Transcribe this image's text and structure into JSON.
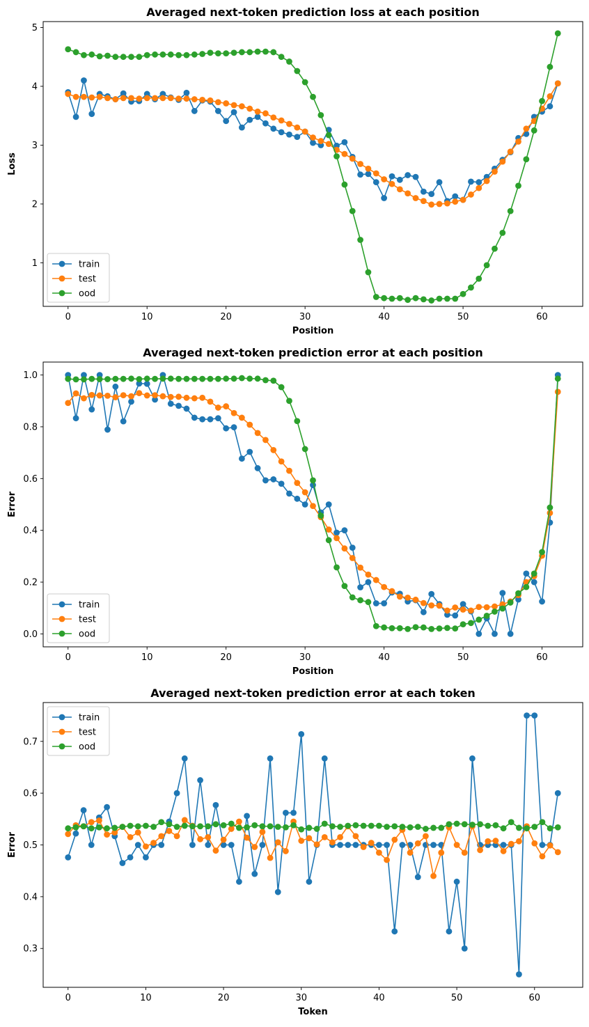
{
  "colors": {
    "train": "#1f77b4",
    "test": "#ff7f0e",
    "ood": "#2ca02c"
  },
  "chart_data": [
    {
      "type": "line",
      "title": "Averaged next-token prediction loss at each position",
      "xlabel": "Position",
      "ylabel": "Loss",
      "xlim": [
        -3.15,
        65.15
      ],
      "ylim": [
        0.26,
        5.1
      ],
      "xticks": [
        0,
        10,
        20,
        30,
        40,
        50,
        60
      ],
      "yticks": [
        1,
        2,
        3,
        4,
        5
      ],
      "legend": "lower-left",
      "grid": false,
      "x_start": 0,
      "series": [
        {
          "name": "train",
          "color": "#1f77b4",
          "values": [
            3.9,
            3.48,
            4.1,
            3.53,
            3.87,
            3.83,
            3.78,
            3.88,
            3.74,
            3.75,
            3.87,
            3.78,
            3.87,
            3.81,
            3.77,
            3.89,
            3.58,
            3.76,
            3.74,
            3.58,
            3.41,
            3.56,
            3.3,
            3.43,
            3.48,
            3.37,
            3.28,
            3.22,
            3.18,
            3.14,
            3.23,
            3.04,
            3.0,
            3.26,
            2.99,
            3.05,
            2.8,
            2.5,
            2.51,
            2.37,
            2.1,
            2.47,
            2.41,
            2.49,
            2.46,
            2.21,
            2.17,
            2.37,
            2.05,
            2.13,
            2.07,
            2.38,
            2.37,
            2.46,
            2.6,
            2.75,
            2.88,
            3.12,
            3.19,
            3.48,
            3.57,
            3.66,
            4.05
          ]
        },
        {
          "name": "test",
          "color": "#ff7f0e",
          "values": [
            3.87,
            3.82,
            3.82,
            3.81,
            3.82,
            3.8,
            3.78,
            3.8,
            3.8,
            3.79,
            3.8,
            3.8,
            3.8,
            3.8,
            3.79,
            3.79,
            3.78,
            3.77,
            3.76,
            3.73,
            3.71,
            3.68,
            3.66,
            3.62,
            3.57,
            3.54,
            3.47,
            3.42,
            3.36,
            3.3,
            3.23,
            3.13,
            3.07,
            3.02,
            2.92,
            2.85,
            2.77,
            2.68,
            2.6,
            2.52,
            2.42,
            2.34,
            2.25,
            2.18,
            2.1,
            2.05,
            1.99,
            2.0,
            2.01,
            2.04,
            2.07,
            2.16,
            2.27,
            2.39,
            2.55,
            2.72,
            2.89,
            3.06,
            3.28,
            3.41,
            3.62,
            3.83,
            4.05
          ]
        },
        {
          "name": "ood",
          "color": "#2ca02c",
          "values": [
            4.63,
            4.58,
            4.53,
            4.54,
            4.51,
            4.52,
            4.5,
            4.5,
            4.5,
            4.5,
            4.53,
            4.54,
            4.54,
            4.54,
            4.53,
            4.53,
            4.54,
            4.55,
            4.57,
            4.56,
            4.56,
            4.57,
            4.58,
            4.58,
            4.59,
            4.59,
            4.58,
            4.5,
            4.42,
            4.26,
            4.07,
            3.82,
            3.51,
            3.17,
            2.81,
            2.33,
            1.88,
            1.39,
            0.84,
            0.42,
            0.4,
            0.39,
            0.4,
            0.37,
            0.4,
            0.38,
            0.36,
            0.39,
            0.39,
            0.39,
            0.47,
            0.58,
            0.73,
            0.96,
            1.24,
            1.51,
            1.88,
            2.31,
            2.76,
            3.25,
            3.75,
            4.33,
            4.9
          ]
        }
      ]
    },
    {
      "type": "line",
      "title": "Averaged next-token prediction error at each position",
      "xlabel": "Position",
      "ylabel": "Error",
      "xlim": [
        -3.15,
        65.15
      ],
      "ylim": [
        -0.05,
        1.05
      ],
      "xticks": [
        0,
        10,
        20,
        30,
        40,
        50,
        60
      ],
      "yticks": [
        0.0,
        0.2,
        0.4,
        0.6,
        0.8,
        1.0
      ],
      "legend": "lower-left",
      "grid": false,
      "x_start": 0,
      "series": [
        {
          "name": "train",
          "color": "#1f77b4",
          "values": [
            1.0,
            0.833,
            1.0,
            0.867,
            1.0,
            0.789,
            0.955,
            0.821,
            0.897,
            0.967,
            0.966,
            0.905,
            1.0,
            0.889,
            0.881,
            0.87,
            0.835,
            0.829,
            0.829,
            0.833,
            0.794,
            0.798,
            0.677,
            0.703,
            0.64,
            0.593,
            0.597,
            0.58,
            0.542,
            0.522,
            0.5,
            0.575,
            0.469,
            0.5,
            0.391,
            0.4,
            0.333,
            0.18,
            0.2,
            0.118,
            0.118,
            0.16,
            0.155,
            0.125,
            0.13,
            0.084,
            0.154,
            0.115,
            0.074,
            0.071,
            0.115,
            0.087,
            0.0,
            0.06,
            0.0,
            0.158,
            0.0,
            0.133,
            0.233,
            0.2,
            0.125,
            0.43,
            1.0
          ]
        },
        {
          "name": "test",
          "color": "#ff7f0e",
          "values": [
            0.892,
            0.929,
            0.91,
            0.923,
            0.921,
            0.92,
            0.914,
            0.922,
            0.918,
            0.93,
            0.921,
            0.922,
            0.918,
            0.915,
            0.916,
            0.912,
            0.91,
            0.912,
            0.897,
            0.874,
            0.879,
            0.853,
            0.835,
            0.808,
            0.776,
            0.749,
            0.71,
            0.666,
            0.63,
            0.583,
            0.547,
            0.494,
            0.451,
            0.403,
            0.37,
            0.33,
            0.293,
            0.256,
            0.229,
            0.208,
            0.181,
            0.165,
            0.144,
            0.14,
            0.132,
            0.119,
            0.11,
            0.109,
            0.09,
            0.102,
            0.094,
            0.09,
            0.104,
            0.103,
            0.106,
            0.114,
            0.125,
            0.15,
            0.2,
            0.223,
            0.302,
            0.467,
            0.935
          ]
        },
        {
          "name": "ood",
          "color": "#2ca02c",
          "values": [
            0.985,
            0.983,
            0.983,
            0.985,
            0.984,
            0.984,
            0.985,
            0.985,
            0.986,
            0.984,
            0.986,
            0.985,
            0.986,
            0.986,
            0.985,
            0.985,
            0.985,
            0.985,
            0.985,
            0.985,
            0.986,
            0.986,
            0.988,
            0.986,
            0.986,
            0.98,
            0.978,
            0.953,
            0.9,
            0.822,
            0.714,
            0.593,
            0.457,
            0.362,
            0.257,
            0.185,
            0.141,
            0.13,
            0.123,
            0.03,
            0.025,
            0.022,
            0.022,
            0.019,
            0.026,
            0.025,
            0.019,
            0.021,
            0.023,
            0.021,
            0.037,
            0.042,
            0.055,
            0.07,
            0.086,
            0.098,
            0.121,
            0.157,
            0.181,
            0.233,
            0.316,
            0.488,
            0.986
          ]
        }
      ]
    },
    {
      "type": "line",
      "title": "Averaged next-token prediction error at each token",
      "xlabel": "Token",
      "ylabel": "Error",
      "xlim": [
        -3.2,
        66.2
      ],
      "ylim": [
        0.225,
        0.775
      ],
      "xticks": [
        0,
        10,
        20,
        30,
        40,
        50,
        60
      ],
      "yticks": [
        0.3,
        0.4,
        0.5,
        0.6,
        0.7
      ],
      "legend": "upper-left",
      "grid": false,
      "x_start": 0,
      "series": [
        {
          "name": "train",
          "color": "#1f77b4",
          "values": [
            0.476,
            0.522,
            0.567,
            0.5,
            0.553,
            0.573,
            0.517,
            0.465,
            0.476,
            0.5,
            0.476,
            0.5,
            0.5,
            0.545,
            0.6,
            0.667,
            0.5,
            0.625,
            0.5,
            0.577,
            0.5,
            0.5,
            0.429,
            0.556,
            0.444,
            0.5,
            0.667,
            0.409,
            0.562,
            0.562,
            0.714,
            0.429,
            0.5,
            0.667,
            0.5,
            0.5,
            0.5,
            0.5,
            0.5,
            0.5,
            0.5,
            0.5,
            0.333,
            0.5,
            0.5,
            0.438,
            0.5,
            0.5,
            0.5,
            0.333,
            0.429,
            0.3,
            0.667,
            0.5,
            0.5,
            0.5,
            0.5,
            0.5,
            0.25,
            0.75,
            0.75,
            0.5,
            0.5,
            0.6
          ]
        },
        {
          "name": "test",
          "color": "#ff7f0e",
          "values": [
            0.521,
            0.538,
            0.536,
            0.544,
            0.547,
            0.52,
            0.524,
            0.535,
            0.515,
            0.524,
            0.497,
            0.504,
            0.517,
            0.527,
            0.517,
            0.548,
            0.537,
            0.511,
            0.515,
            0.489,
            0.51,
            0.531,
            0.545,
            0.514,
            0.496,
            0.525,
            0.475,
            0.505,
            0.488,
            0.545,
            0.508,
            0.513,
            0.501,
            0.515,
            0.505,
            0.515,
            0.536,
            0.517,
            0.496,
            0.504,
            0.485,
            0.471,
            0.51,
            0.529,
            0.485,
            0.503,
            0.517,
            0.44,
            0.485,
            0.534,
            0.5,
            0.485,
            0.536,
            0.49,
            0.507,
            0.508,
            0.488,
            0.502,
            0.507,
            0.536,
            0.503,
            0.478,
            0.499,
            0.486
          ]
        },
        {
          "name": "ood",
          "color": "#2ca02c",
          "values": [
            0.532,
            0.534,
            0.536,
            0.532,
            0.534,
            0.532,
            0.533,
            0.535,
            0.537,
            0.536,
            0.537,
            0.535,
            0.544,
            0.54,
            0.535,
            0.537,
            0.536,
            0.536,
            0.536,
            0.54,
            0.538,
            0.541,
            0.533,
            0.534,
            0.538,
            0.536,
            0.536,
            0.535,
            0.534,
            0.538,
            0.53,
            0.533,
            0.531,
            0.541,
            0.536,
            0.535,
            0.537,
            0.538,
            0.537,
            0.537,
            0.537,
            0.535,
            0.536,
            0.535,
            0.534,
            0.535,
            0.531,
            0.533,
            0.533,
            0.54,
            0.541,
            0.54,
            0.539,
            0.54,
            0.537,
            0.538,
            0.532,
            0.544,
            0.533,
            0.532,
            0.535,
            0.544,
            0.532,
            0.534
          ]
        }
      ]
    }
  ]
}
